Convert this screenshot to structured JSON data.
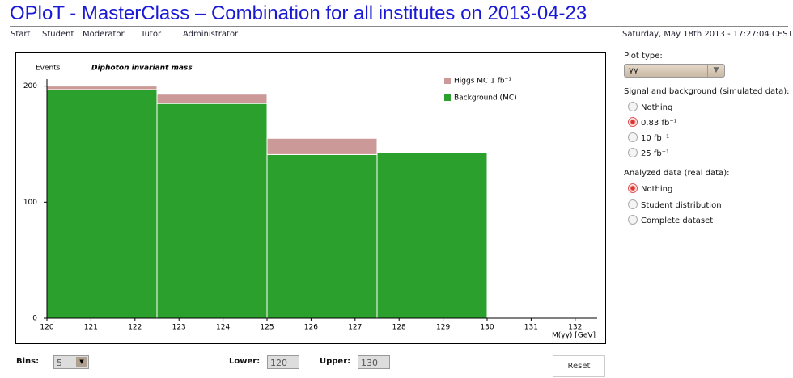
{
  "header": {
    "title": "OPloT - MasterClass – Combination for all institutes on 2013-04-23",
    "nav": [
      "Start",
      "Student",
      "Moderator",
      "Tutor",
      "Administrator"
    ],
    "datetime": "Saturday, May 18th 2013 - 17:27:04 CEST"
  },
  "sidebar": {
    "plot_type_label": "Plot type:",
    "plot_type_value": "γγ",
    "signal": {
      "label": "Signal and background (simulated data):",
      "options": [
        "Nothing",
        "0.83 fb⁻¹",
        "10 fb⁻¹",
        "25 fb⁻¹"
      ],
      "selected": 1
    },
    "analyzed": {
      "label": "Analyzed data (real data):",
      "options": [
        "Nothing",
        "Student distribution",
        "Complete dataset"
      ],
      "selected": 0
    }
  },
  "controls": {
    "bins_label": "Bins:",
    "bins_value": "5",
    "lower_label": "Lower:",
    "lower_value": "120",
    "upper_label": "Upper:",
    "upper_value": "130",
    "reset": "Reset"
  },
  "chart_data": {
    "type": "histogram",
    "title": "Diphoton invariant mass",
    "y_label": "Events",
    "x_label": "M(γγ) [GeV]",
    "bins": [
      120,
      122.5,
      125,
      127.5,
      130
    ],
    "series": [
      {
        "name": "Higgs MC 1 fb⁻¹",
        "color": "#cc9999",
        "values": [
          3,
          8,
          14,
          0
        ]
      },
      {
        "name": "Background (MC)",
        "color": "#2ca02c",
        "values": [
          197,
          185,
          141,
          143
        ]
      }
    ],
    "xlim": [
      120,
      132.5
    ],
    "ylim": [
      0,
      206
    ],
    "xticks": [
      120,
      121,
      122,
      123,
      124,
      125,
      126,
      127,
      128,
      129,
      130,
      131,
      132
    ],
    "yticks": [
      0,
      100,
      200
    ]
  }
}
